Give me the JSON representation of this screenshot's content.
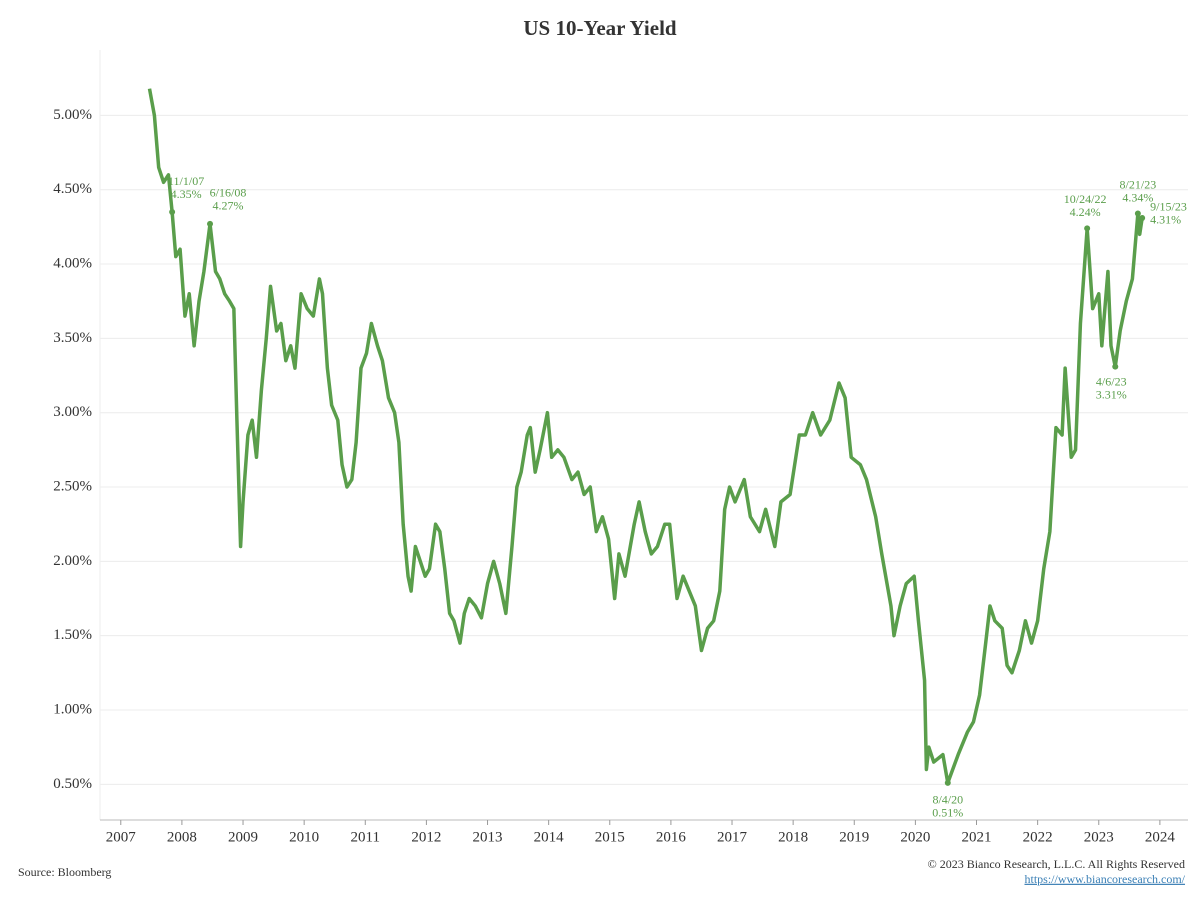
{
  "chart_data": {
    "type": "line",
    "title": "US 10-Year Yield",
    "color": "#5a9e4b",
    "grid": true,
    "xlim": [
      2006.66,
      2024.46
    ],
    "xticks": [
      2007,
      2008,
      2009,
      2010,
      2011,
      2012,
      2013,
      2014,
      2015,
      2016,
      2017,
      2018,
      2019,
      2020,
      2021,
      2022,
      2023,
      2024
    ],
    "ylim": [
      0.26,
      5.44
    ],
    "yticks": [
      {
        "value": 0.5,
        "label": "0.50%"
      },
      {
        "value": 1,
        "label": "1.00%"
      },
      {
        "value": 1.5,
        "label": "1.50%"
      },
      {
        "value": 2,
        "label": "2.00%"
      },
      {
        "value": 2.5,
        "label": "2.50%"
      },
      {
        "value": 3,
        "label": "3.00%"
      },
      {
        "value": 3.5,
        "label": "3.50%"
      },
      {
        "value": 4,
        "label": "4.00%"
      },
      {
        "value": 4.5,
        "label": "4.50%"
      },
      {
        "value": 5,
        "label": "5.00%"
      }
    ],
    "x": [
      2007.47,
      2007.55,
      2007.62,
      2007.7,
      2007.78,
      2007.84,
      2007.9,
      2007.97,
      2008.05,
      2008.12,
      2008.2,
      2008.28,
      2008.36,
      2008.46,
      2008.55,
      2008.62,
      2008.7,
      2008.78,
      2008.85,
      2008.9,
      2008.96,
      2009.0,
      2009.08,
      2009.15,
      2009.22,
      2009.3,
      2009.38,
      2009.45,
      2009.55,
      2009.62,
      2009.7,
      2009.78,
      2009.85,
      2009.95,
      2010.05,
      2010.15,
      2010.25,
      2010.3,
      2010.38,
      2010.45,
      2010.55,
      2010.62,
      2010.7,
      2010.78,
      2010.85,
      2010.93,
      2011.02,
      2011.1,
      2011.2,
      2011.28,
      2011.38,
      2011.48,
      2011.55,
      2011.62,
      2011.7,
      2011.75,
      2011.82,
      2011.9,
      2011.98,
      2012.05,
      2012.15,
      2012.22,
      2012.3,
      2012.38,
      2012.45,
      2012.55,
      2012.62,
      2012.7,
      2012.8,
      2012.9,
      2013.0,
      2013.1,
      2013.2,
      2013.3,
      2013.4,
      2013.48,
      2013.55,
      2013.65,
      2013.7,
      2013.78,
      2013.86,
      2013.98,
      2014.05,
      2014.15,
      2014.25,
      2014.38,
      2014.48,
      2014.58,
      2014.68,
      2014.78,
      2014.88,
      2014.98,
      2015.08,
      2015.15,
      2015.25,
      2015.4,
      2015.48,
      2015.58,
      2015.68,
      2015.78,
      2015.9,
      2015.98,
      2016.1,
      2016.2,
      2016.3,
      2016.4,
      2016.5,
      2016.6,
      2016.7,
      2016.8,
      2016.88,
      2016.96,
      2017.05,
      2017.2,
      2017.3,
      2017.45,
      2017.55,
      2017.7,
      2017.8,
      2017.95,
      2018.1,
      2018.2,
      2018.32,
      2018.45,
      2018.6,
      2018.75,
      2018.85,
      2018.95,
      2019.1,
      2019.2,
      2019.35,
      2019.45,
      2019.6,
      2019.65,
      2019.75,
      2019.85,
      2019.98,
      2020.05,
      2020.15,
      2020.18,
      2020.22,
      2020.3,
      2020.45,
      2020.53,
      2020.7,
      2020.85,
      2020.95,
      2021.05,
      2021.15,
      2021.22,
      2021.3,
      2021.42,
      2021.5,
      2021.58,
      2021.7,
      2021.8,
      2021.9,
      2022.0,
      2022.1,
      2022.2,
      2022.3,
      2022.4,
      2022.45,
      2022.55,
      2022.62,
      2022.7,
      2022.81,
      2022.9,
      2023.0,
      2023.05,
      2023.15,
      2023.2,
      2023.27,
      2023.35,
      2023.45,
      2023.55,
      2023.64,
      2023.67,
      2023.71
    ],
    "values": [
      5.18,
      5.0,
      4.65,
      4.55,
      4.6,
      4.35,
      4.05,
      4.1,
      3.65,
      3.8,
      3.45,
      3.75,
      3.95,
      4.27,
      3.95,
      3.9,
      3.8,
      3.75,
      3.7,
      2.95,
      2.1,
      2.4,
      2.85,
      2.95,
      2.7,
      3.15,
      3.5,
      3.85,
      3.55,
      3.6,
      3.35,
      3.45,
      3.3,
      3.8,
      3.7,
      3.65,
      3.9,
      3.8,
      3.3,
      3.05,
      2.95,
      2.65,
      2.5,
      2.55,
      2.8,
      3.3,
      3.4,
      3.6,
      3.45,
      3.35,
      3.1,
      3.0,
      2.8,
      2.25,
      1.9,
      1.8,
      2.1,
      2.0,
      1.9,
      1.95,
      2.25,
      2.2,
      1.95,
      1.65,
      1.6,
      1.45,
      1.65,
      1.75,
      1.7,
      1.62,
      1.85,
      2.0,
      1.85,
      1.65,
      2.1,
      2.5,
      2.6,
      2.85,
      2.9,
      2.6,
      2.75,
      3.0,
      2.7,
      2.75,
      2.7,
      2.55,
      2.6,
      2.45,
      2.5,
      2.2,
      2.3,
      2.15,
      1.75,
      2.05,
      1.9,
      2.25,
      2.4,
      2.2,
      2.05,
      2.1,
      2.25,
      2.25,
      1.75,
      1.9,
      1.8,
      1.7,
      1.4,
      1.55,
      1.6,
      1.8,
      2.35,
      2.5,
      2.4,
      2.55,
      2.3,
      2.2,
      2.35,
      2.1,
      2.4,
      2.45,
      2.85,
      2.85,
      3.0,
      2.85,
      2.95,
      3.2,
      3.1,
      2.7,
      2.65,
      2.55,
      2.3,
      2.05,
      1.7,
      1.5,
      1.7,
      1.85,
      1.9,
      1.6,
      1.2,
      0.6,
      0.75,
      0.65,
      0.7,
      0.51,
      0.7,
      0.85,
      0.92,
      1.1,
      1.45,
      1.7,
      1.6,
      1.55,
      1.3,
      1.25,
      1.4,
      1.6,
      1.45,
      1.6,
      1.95,
      2.2,
      2.9,
      2.85,
      3.3,
      2.7,
      2.75,
      3.6,
      4.24,
      3.7,
      3.8,
      3.45,
      3.95,
      3.45,
      3.31,
      3.55,
      3.75,
      3.9,
      4.34,
      4.2,
      4.31
    ],
    "annotations": [
      {
        "x": 2007.84,
        "y": 4.35,
        "label": "11/1/07",
        "value_label": "4.35%"
      },
      {
        "x": 2008.46,
        "y": 4.27,
        "label": "6/16/08",
        "value_label": "4.27%"
      },
      {
        "x": 2020.53,
        "y": 0.51,
        "label": "8/4/20",
        "value_label": "0.51%"
      },
      {
        "x": 2022.81,
        "y": 4.24,
        "label": "10/24/22",
        "value_label": "4.24%"
      },
      {
        "x": 2023.27,
        "y": 3.31,
        "label": "4/6/23",
        "value_label": "3.31%"
      },
      {
        "x": 2023.64,
        "y": 4.34,
        "label": "8/21/23",
        "value_label": "4.34%"
      },
      {
        "x": 2023.71,
        "y": 4.31,
        "label": "9/15/23",
        "value_label": "4.31%"
      }
    ],
    "source": "Source: Bloomberg",
    "credit": "© 2023 Bianco Research, L.L.C. All Rights Reserved",
    "link": "https://www.biancoresearch.com/"
  }
}
